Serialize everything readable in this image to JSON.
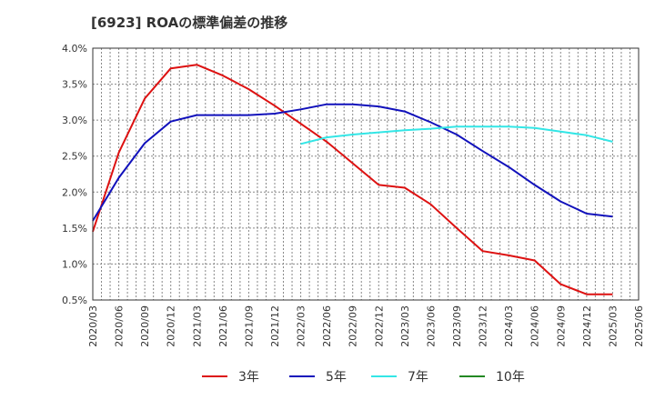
{
  "chart_data": {
    "type": "line",
    "title": "[6923]  ROAの標準偏差の推移",
    "xlabel": "",
    "ylabel": "",
    "x": [
      "2020/03",
      "2020/06",
      "2020/09",
      "2020/12",
      "2021/03",
      "2021/06",
      "2021/09",
      "2021/12",
      "2022/03",
      "2022/06",
      "2022/09",
      "2022/12",
      "2023/03",
      "2023/06",
      "2023/09",
      "2023/12",
      "2024/03",
      "2024/06",
      "2024/09",
      "2024/12",
      "2025/03",
      "2025/06"
    ],
    "ylim": [
      0.5,
      4.0
    ],
    "yticks": [
      "0.5%",
      "1.0%",
      "1.5%",
      "2.0%",
      "2.5%",
      "3.0%",
      "3.5%",
      "4.0%"
    ],
    "grid": true,
    "legend_position": "bottom",
    "series": [
      {
        "name": "3年",
        "color": "#dd1111",
        "values": [
          1.45,
          2.55,
          3.3,
          3.72,
          3.77,
          3.62,
          3.43,
          3.2,
          2.95,
          2.7,
          2.4,
          2.1,
          2.06,
          1.83,
          1.5,
          1.18,
          1.12,
          1.05,
          0.72,
          0.58,
          0.58,
          null
        ]
      },
      {
        "name": "5年",
        "color": "#1111bb",
        "values": [
          1.6,
          2.2,
          2.68,
          2.98,
          3.07,
          3.07,
          3.07,
          3.09,
          3.15,
          3.22,
          3.22,
          3.19,
          3.12,
          2.97,
          2.8,
          2.57,
          2.35,
          2.1,
          1.87,
          1.7,
          1.66,
          null
        ]
      },
      {
        "name": "7年",
        "color": "#33e6e6",
        "values": [
          null,
          null,
          null,
          null,
          null,
          null,
          null,
          null,
          2.67,
          2.76,
          2.8,
          2.83,
          2.86,
          2.88,
          2.91,
          2.91,
          2.91,
          2.89,
          2.84,
          2.79,
          2.7,
          null
        ]
      },
      {
        "name": "10年",
        "color": "#228822",
        "values": [
          null,
          null,
          null,
          null,
          null,
          null,
          null,
          null,
          null,
          null,
          null,
          null,
          null,
          null,
          null,
          null,
          null,
          null,
          null,
          null,
          null,
          null
        ]
      }
    ]
  }
}
